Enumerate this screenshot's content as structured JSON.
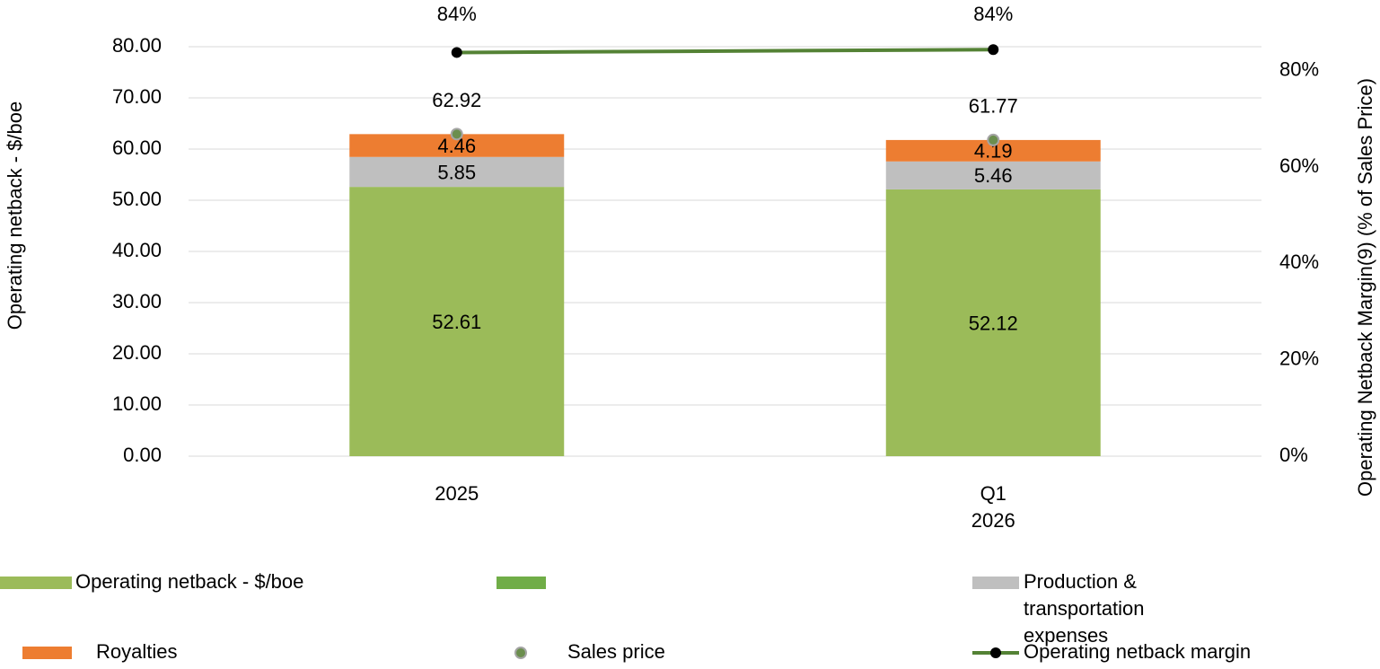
{
  "chart_data": {
    "type": "bar",
    "y_axis_label": "Operating netback - $/boe",
    "y2_axis_label": "Operating Netback Margin(9) (% of Sales Price)",
    "categories": [
      "2025",
      "Q1 2026"
    ],
    "ylim": [
      0,
      80
    ],
    "yticks": [
      {
        "value": 0,
        "label": "0.00"
      },
      {
        "value": 10,
        "label": "10.00"
      },
      {
        "value": 20,
        "label": "20.00"
      },
      {
        "value": 30,
        "label": "30.00"
      },
      {
        "value": 40,
        "label": "40.00"
      },
      {
        "value": 50,
        "label": "50.00"
      },
      {
        "value": 60,
        "label": "60.00"
      },
      {
        "value": 70,
        "label": "70.00"
      },
      {
        "value": 80,
        "label": "80.00"
      }
    ],
    "y2lim": [
      0,
      85
    ],
    "y2ticks": [
      {
        "value": 0,
        "label": "0%"
      },
      {
        "value": 20,
        "label": "20%"
      },
      {
        "value": 40,
        "label": "40%"
      },
      {
        "value": 60,
        "label": "60%"
      },
      {
        "value": 80,
        "label": "80%"
      }
    ],
    "grid": true,
    "series": [
      {
        "name": "Operating netback - $/boe",
        "type": "bar",
        "color": "#9bbb59",
        "values": [
          52.61,
          52.12
        ]
      },
      {
        "name": "Production & transportation expenses",
        "type": "bar",
        "color": "#bfbfbf",
        "values": [
          5.85,
          5.46
        ]
      },
      {
        "name": "Royalties",
        "type": "bar",
        "color": "#ed7d31",
        "values": [
          4.46,
          4.19
        ]
      },
      {
        "name": "Sales price",
        "type": "scatter",
        "color": "#6b8e4e",
        "values": [
          62.92,
          61.77
        ]
      },
      {
        "name": "Operating netback margin",
        "type": "line",
        "axis": "y2",
        "color": "#548235",
        "values": [
          83.8,
          84.4
        ],
        "value_labels": [
          "84%",
          "84%"
        ]
      }
    ]
  }
}
